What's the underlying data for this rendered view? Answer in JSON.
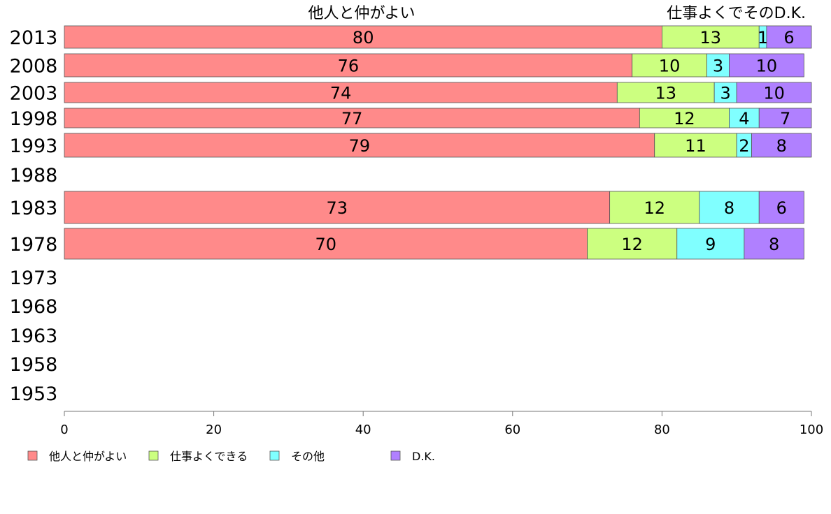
{
  "chart_data": {
    "type": "bar",
    "orientation": "horizontal",
    "stacked": true,
    "categories": [
      "2013",
      "2008",
      "2003",
      "1998",
      "1993",
      "1988",
      "1983",
      "1978",
      "1973",
      "1968",
      "1963",
      "1958",
      "1953"
    ],
    "series": [
      {
        "name": "他人と仲がよい",
        "color": "#ff8a8a",
        "values": [
          80,
          76,
          74,
          77,
          79,
          null,
          73,
          70,
          null,
          null,
          null,
          null,
          null
        ]
      },
      {
        "name": "仕事よくできる",
        "color": "#ccff80",
        "values": [
          13,
          10,
          13,
          12,
          11,
          null,
          12,
          12,
          null,
          null,
          null,
          null,
          null
        ]
      },
      {
        "name": "その他",
        "color": "#80ffff",
        "values": [
          1,
          3,
          3,
          4,
          2,
          null,
          8,
          9,
          null,
          null,
          null,
          null,
          null
        ]
      },
      {
        "name": "D.K.",
        "color": "#b080ff",
        "values": [
          6,
          10,
          10,
          7,
          8,
          null,
          6,
          8,
          null,
          null,
          null,
          null,
          null
        ]
      }
    ],
    "top_labels": [
      "他人と仲がよい",
      "仕事よくでそのD.K."
    ],
    "xlim": [
      0,
      100
    ],
    "xticks": [
      0,
      20,
      40,
      60,
      80,
      100
    ],
    "grid": false,
    "legend_position": "bottom"
  }
}
